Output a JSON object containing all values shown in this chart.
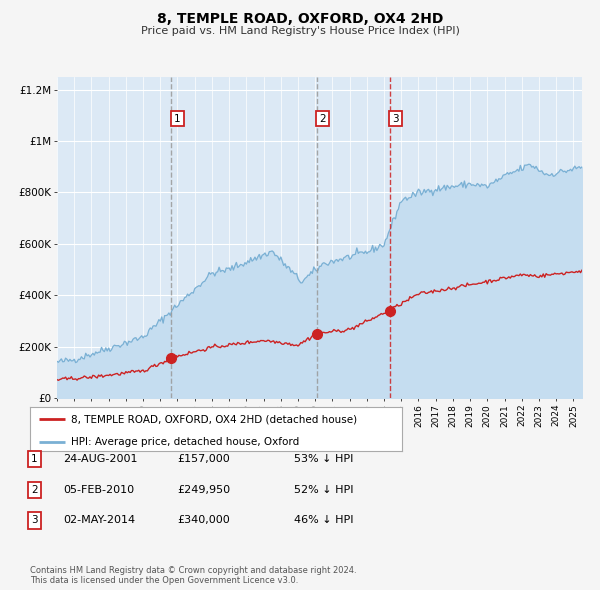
{
  "title": "8, TEMPLE ROAD, OXFORD, OX4 2HD",
  "subtitle": "Price paid vs. HM Land Registry's House Price Index (HPI)",
  "background_color": "#dce9f5",
  "grid_color": "#ffffff",
  "hpi_line_color": "#7ab0d4",
  "hpi_fill_color": "#c5ddf0",
  "price_line_color": "#cc2222",
  "sale_marker_color": "#cc2222",
  "vline1_color": "#999999",
  "vline2_color": "#999999",
  "vline3_color": "#cc2222",
  "fig_bg_color": "#f5f5f5",
  "ylim": [
    0,
    1250000
  ],
  "yticks": [
    0,
    200000,
    400000,
    600000,
    800000,
    1000000,
    1200000
  ],
  "ytick_labels": [
    "£0",
    "£200K",
    "£400K",
    "£600K",
    "£800K",
    "£1M",
    "£1.2M"
  ],
  "sale1_year": 2001.647,
  "sale1_price": 157000,
  "sale1_label": "1",
  "sale2_year": 2010.09,
  "sale2_price": 249950,
  "sale2_label": "2",
  "sale3_year": 2014.33,
  "sale3_price": 340000,
  "sale3_label": "3",
  "legend_price_label": "8, TEMPLE ROAD, OXFORD, OX4 2HD (detached house)",
  "legend_hpi_label": "HPI: Average price, detached house, Oxford",
  "table_rows": [
    {
      "num": "1",
      "date": "24-AUG-2001",
      "price": "£157,000",
      "pct": "53% ↓ HPI"
    },
    {
      "num": "2",
      "date": "05-FEB-2010",
      "price": "£249,950",
      "pct": "52% ↓ HPI"
    },
    {
      "num": "3",
      "date": "02-MAY-2014",
      "price": "£340,000",
      "pct": "46% ↓ HPI"
    }
  ],
  "footer": "Contains HM Land Registry data © Crown copyright and database right 2024.\nThis data is licensed under the Open Government Licence v3.0.",
  "xmin": 1995.0,
  "xmax": 2025.5
}
